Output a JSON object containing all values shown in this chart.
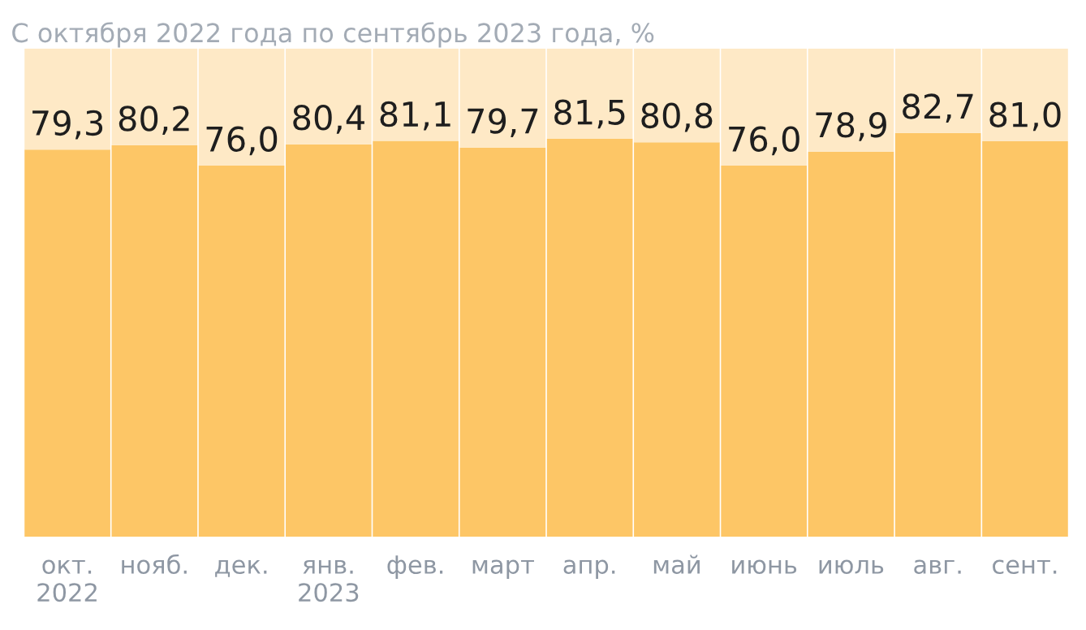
{
  "chart_data": {
    "type": "bar",
    "title": "С октября 2022 года по сентябрь 2023 года, %",
    "categories": [
      "окт.\n2022",
      "нояб.",
      "дек.",
      "янв.\n2023",
      "фев.",
      "март",
      "апр.",
      "май",
      "июнь",
      "июль",
      "авг.",
      "сент."
    ],
    "stacked": true,
    "ylim": [
      0,
      100
    ],
    "tick_labels": "x",
    "grid": false,
    "legend": false,
    "series": [
      {
        "color": "#fdc666",
        "values": [
          79.3,
          80.2,
          76.0,
          80.4,
          81.1,
          79.7,
          81.5,
          80.8,
          76.0,
          78.9,
          82.7,
          81.0
        ],
        "value_labels": [
          "79,3",
          "80,2",
          "76,0",
          "80,4",
          "81,1",
          "79,7",
          "81,5",
          "80,8",
          "76,0",
          "78,9",
          "82,7",
          "81,0"
        ]
      },
      {
        "color": "#fee9c6",
        "values": [
          20.7,
          19.8,
          24.0,
          19.6,
          18.9,
          20.3,
          18.5,
          19.2,
          24.0,
          21.1,
          17.3,
          19.0
        ]
      }
    ]
  }
}
